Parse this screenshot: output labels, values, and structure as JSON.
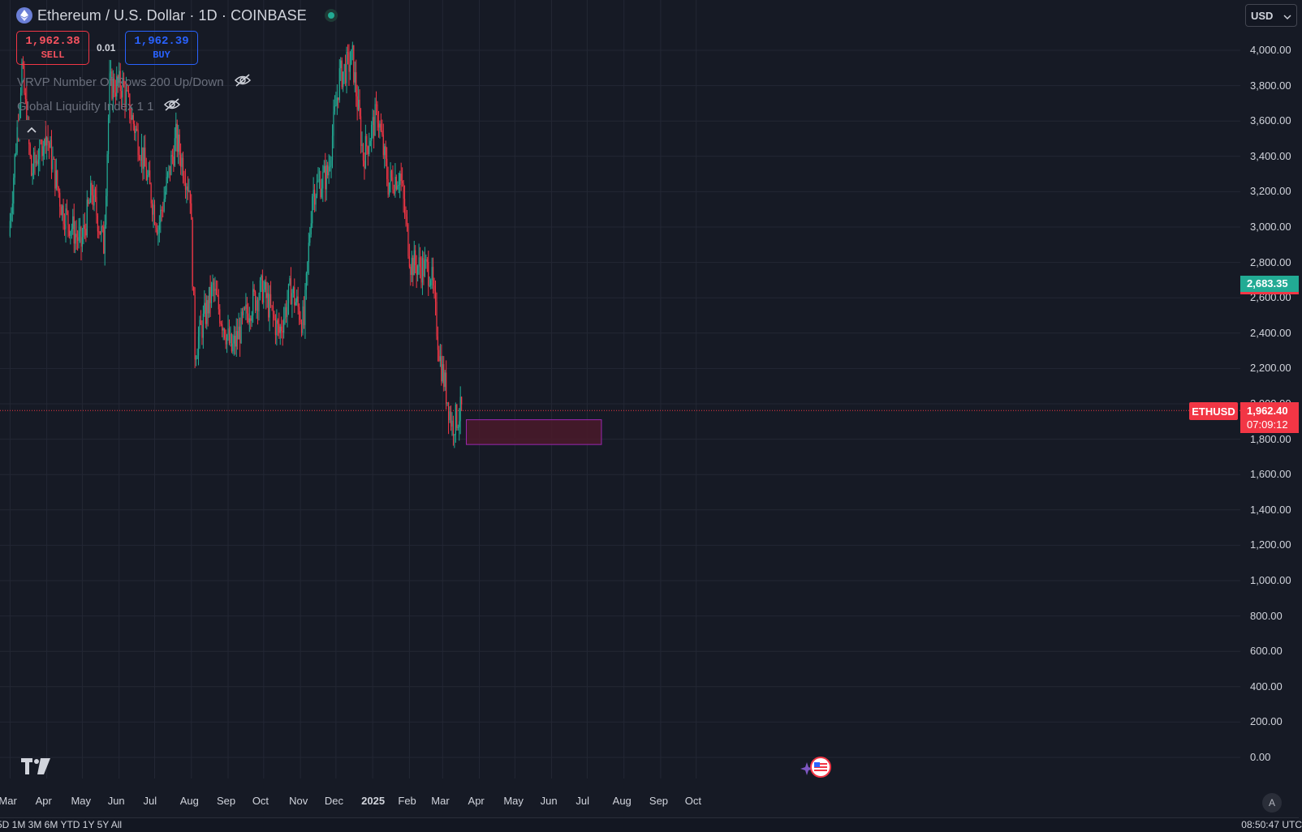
{
  "header": {
    "symbol_title": "Ethereum / U.S. Dollar · 1D · COINBASE",
    "symbol_icon": "ethereum-icon",
    "market_status_icon": "market-open-dot-icon"
  },
  "trade": {
    "sell_price": "1,962.38",
    "sell_label": "SELL",
    "spread": "0.01",
    "buy_price": "1,962.39",
    "buy_label": "BUY"
  },
  "indicators": [
    {
      "label": "VRVP Number Of Rows 200 Up/Down",
      "icon": "eye-off-icon"
    },
    {
      "label": "Global Liquidity Index 1 1",
      "icon": "eye-off-icon"
    }
  ],
  "currency_button": "USD",
  "price_axis": {
    "ticks": [
      "4,000.00",
      "3,800.00",
      "3,600.00",
      "3,400.00",
      "3,200.00",
      "3,000.00",
      "2,800.00",
      "2,600.00",
      "2,400.00",
      "2,200.00",
      "2,000.00",
      "1,800.00",
      "1,600.00",
      "1,400.00",
      "1,200.00",
      "1,000.00",
      "800.00",
      "600.00",
      "400.00",
      "200.00",
      "0.00"
    ]
  },
  "time_axis": {
    "ticks": [
      "Mar",
      "Apr",
      "May",
      "Jun",
      "Jul",
      "Aug",
      "Sep",
      "Oct",
      "Nov",
      "Dec",
      "2025",
      "Feb",
      "Mar",
      "Apr",
      "May",
      "Jun",
      "Jul",
      "Aug",
      "Sep",
      "Oct"
    ]
  },
  "price_tags": {
    "indicator_value": "2,683.35",
    "symbol": "ETHUSD",
    "last_price": "1,962.40",
    "countdown": "07:09:12"
  },
  "bottom_bar": {
    "ranges": "5D 1M 3M 6M YTD 1Y 5Y All",
    "clock": "08:50:47 UTC"
  },
  "auto_label": "A",
  "colors": {
    "background": "#161a25",
    "up": "#22ab94",
    "down": "#f23645",
    "zone_fill": "#4a1a2a",
    "zone_border": "#9c27b0"
  },
  "chart_data": {
    "type": "candlestick",
    "title": "Ethereum / U.S. Dollar · 1D · COINBASE",
    "x": [
      "Mar 2024",
      "Apr 2024",
      "May 2024",
      "Jun 2024",
      "Jul 2024",
      "Aug 2024",
      "Sep 2024",
      "Oct 2024",
      "Nov 2024",
      "Dec 2024",
      "Jan 2025",
      "Feb 2025",
      "Mar 2025"
    ],
    "ylim": [
      0,
      4100
    ],
    "last_price": 1962.4,
    "indicator_value": 2683.35,
    "zone": {
      "x_range": [
        "Mar 2025",
        "Jul 2025"
      ],
      "y_range": [
        1770,
        1910
      ]
    },
    "anchors": [
      {
        "x": "Mar 1 2024",
        "y": 2950
      },
      {
        "x": "Mar 12 2024",
        "y": 3900
      },
      {
        "x": "Mar 20 2024",
        "y": 3300
      },
      {
        "x": "Apr 1 2024",
        "y": 3550
      },
      {
        "x": "Apr 15 2024",
        "y": 3100
      },
      {
        "x": "May 1 2024",
        "y": 2900
      },
      {
        "x": "May 10 2024",
        "y": 3200
      },
      {
        "x": "May 20 2024",
        "y": 2900
      },
      {
        "x": "May 25 2024",
        "y": 3800
      },
      {
        "x": "Jun 5 2024",
        "y": 3800
      },
      {
        "x": "Jun 20 2024",
        "y": 3450
      },
      {
        "x": "Jul 5 2024",
        "y": 3000
      },
      {
        "x": "Jul 20 2024",
        "y": 3500
      },
      {
        "x": "Aug 1 2024",
        "y": 3200
      },
      {
        "x": "Aug 5 2024",
        "y": 2300
      },
      {
        "x": "Aug 20 2024",
        "y": 2650
      },
      {
        "x": "Sep 5 2024",
        "y": 2300
      },
      {
        "x": "Sep 20 2024",
        "y": 2550
      },
      {
        "x": "Oct 1 2024",
        "y": 2650
      },
      {
        "x": "Oct 15 2024",
        "y": 2400
      },
      {
        "x": "Oct 25 2024",
        "y": 2650
      },
      {
        "x": "Nov 5 2024",
        "y": 2450
      },
      {
        "x": "Nov 12 2024",
        "y": 3200
      },
      {
        "x": "Nov 25 2024",
        "y": 3300
      },
      {
        "x": "Dec 5 2024",
        "y": 3850
      },
      {
        "x": "Dec 16 2024",
        "y": 3950
      },
      {
        "x": "Dec 25 2024",
        "y": 3400
      },
      {
        "x": "Jan 6 2025",
        "y": 3650
      },
      {
        "x": "Jan 15 2025",
        "y": 3250
      },
      {
        "x": "Jan 25 2025",
        "y": 3300
      },
      {
        "x": "Feb 3 2025",
        "y": 2800
      },
      {
        "x": "Feb 20 2025",
        "y": 2750
      },
      {
        "x": "Feb 28 2025",
        "y": 2250
      },
      {
        "x": "Mar 10 2025",
        "y": 1880
      },
      {
        "x": "Mar 18 2025",
        "y": 1962
      }
    ]
  }
}
